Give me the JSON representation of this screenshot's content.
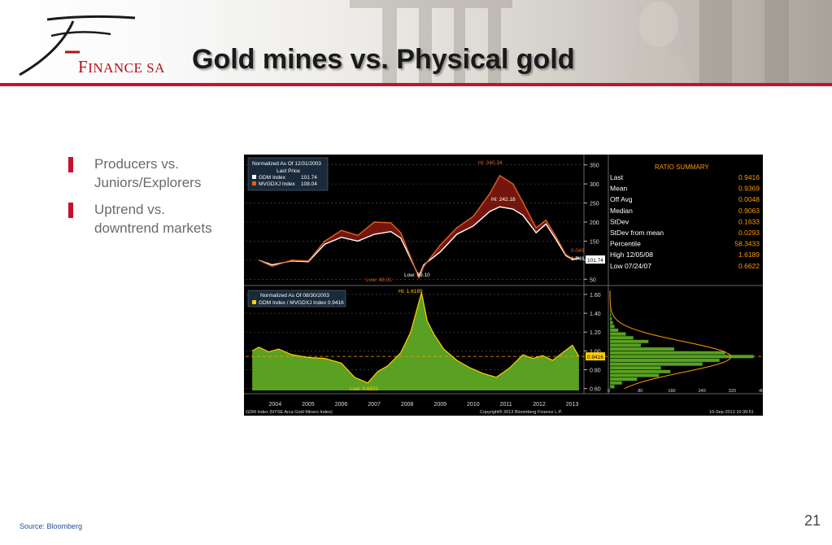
{
  "slide": {
    "title": "Gold mines vs. Physical gold",
    "logo_text_first": "F",
    "logo_text_rest": "INANCE SA",
    "bullets": [
      "Producers vs. Juniors/Explorers",
      "Uptrend vs. downtrend markets"
    ],
    "source": "Source:  Bloomberg",
    "page_number": "21"
  },
  "colors": {
    "accent": "#c8102e",
    "gold_series": "#ffffff",
    "miners_series": "#e06020",
    "ratio_fill": "#5aa022",
    "ratio_line": "#ffd000",
    "summary_label": "#ffffff",
    "summary_value": "#ff9a00"
  },
  "chart_data": [
    {
      "type": "line",
      "legend_title": "Normalized As Of 12/31/2003",
      "legend_subtitle": "Last Price",
      "series": [
        {
          "name": "GDM Index",
          "last": "101.74",
          "color": "#ffffff",
          "points": [
            [
              2004,
              100
            ],
            [
              2004.4,
              88
            ],
            [
              2005,
              98
            ],
            [
              2005.5,
              96
            ],
            [
              2006,
              142
            ],
            [
              2006.5,
              160
            ],
            [
              2007,
              150
            ],
            [
              2007.5,
              168
            ],
            [
              2008,
              175
            ],
            [
              2008.3,
              158
            ],
            [
              2008.85,
              58
            ],
            [
              2009,
              88
            ],
            [
              2009.5,
              122
            ],
            [
              2010,
              168
            ],
            [
              2010.5,
              190
            ],
            [
              2011,
              228
            ],
            [
              2011.3,
              240
            ],
            [
              2011.7,
              234
            ],
            [
              2012,
              218
            ],
            [
              2012.4,
              172
            ],
            [
              2012.7,
              195
            ],
            [
              2013,
              155
            ],
            [
              2013.3,
              112
            ],
            [
              2013.5,
              102
            ],
            [
              2013.7,
              105
            ]
          ]
        },
        {
          "name": "MVGDXJ Index",
          "last": "108.04",
          "color": "#e06020",
          "points": [
            [
              2004,
              100
            ],
            [
              2004.4,
              84
            ],
            [
              2005,
              100
            ],
            [
              2005.5,
              98
            ],
            [
              2006,
              150
            ],
            [
              2006.5,
              178
            ],
            [
              2007,
              165
            ],
            [
              2007.5,
              200
            ],
            [
              2008,
              198
            ],
            [
              2008.3,
              172
            ],
            [
              2008.85,
              54
            ],
            [
              2009,
              84
            ],
            [
              2009.5,
              140
            ],
            [
              2010,
              185
            ],
            [
              2010.5,
              215
            ],
            [
              2011,
              275
            ],
            [
              2011.3,
              322
            ],
            [
              2011.7,
              300
            ],
            [
              2012,
              252
            ],
            [
              2012.4,
              185
            ],
            [
              2012.7,
              205
            ],
            [
              2013,
              162
            ],
            [
              2013.3,
              115
            ],
            [
              2013.5,
              104
            ],
            [
              2013.7,
              108
            ]
          ]
        }
      ],
      "annotations": [
        "Hi: 340.34",
        "Hi: 242.18",
        "Low: 59.10",
        "Low: 48.01",
        "1.749",
        "0.049"
      ],
      "y_ticks": [
        "350",
        "300",
        "250",
        "200",
        "150",
        "100",
        "50"
      ],
      "ylim": [
        40,
        360
      ],
      "last_label": "101.74"
    },
    {
      "type": "area",
      "legend_title": "Normalized As Of 08/30/2003",
      "series": [
        {
          "name": "GDM Index / MVGDXJ Index 0.9416",
          "color": "#ffd000",
          "points": [
            [
              2003.8,
              1.0
            ],
            [
              2004,
              1.04
            ],
            [
              2004.3,
              0.99
            ],
            [
              2004.6,
              1.02
            ],
            [
              2005,
              0.96
            ],
            [
              2005.5,
              0.93
            ],
            [
              2006,
              0.92
            ],
            [
              2006.5,
              0.87
            ],
            [
              2006.9,
              0.72
            ],
            [
              2007.1,
              0.69
            ],
            [
              2007.3,
              0.66
            ],
            [
              2007.6,
              0.78
            ],
            [
              2007.9,
              0.84
            ],
            [
              2008.3,
              0.98
            ],
            [
              2008.6,
              1.2
            ],
            [
              2008.93,
              1.62
            ],
            [
              2009.1,
              1.32
            ],
            [
              2009.3,
              1.18
            ],
            [
              2009.6,
              1.02
            ],
            [
              2010,
              0.9
            ],
            [
              2010.4,
              0.82
            ],
            [
              2010.8,
              0.76
            ],
            [
              2011.2,
              0.72
            ],
            [
              2011.6,
              0.82
            ],
            [
              2012,
              0.96
            ],
            [
              2012.3,
              0.92
            ],
            [
              2012.6,
              0.95
            ],
            [
              2012.9,
              0.9
            ],
            [
              2013.2,
              0.98
            ],
            [
              2013.5,
              1.06
            ],
            [
              2013.7,
              0.94
            ]
          ]
        }
      ],
      "annotations": [
        "Hi: 1.6189",
        "Low: 0.6622"
      ],
      "y_ticks": [
        "1.60",
        "1.40",
        "1.20",
        "1.00",
        "0.80",
        "0.60"
      ],
      "ylim": [
        0.58,
        1.66
      ],
      "last_label": "0.9416",
      "x_ticks": [
        "2004",
        "2005",
        "2006",
        "2007",
        "2008",
        "2009",
        "2010",
        "2011",
        "2012",
        "2013"
      ],
      "xlim": [
        2003.6,
        2013.85
      ],
      "footer_left": "GDM Index (NYSE Arca Gold Miners Index)",
      "footer_center": "Copyright® 2013 Bloomberg Finance L.P.",
      "footer_right": "10-Sep-2013 10:39:51"
    },
    {
      "type": "bar",
      "orientation": "horizontal",
      "bins": [
        0.62,
        0.66,
        0.7,
        0.74,
        0.78,
        0.82,
        0.86,
        0.9,
        0.94,
        0.98,
        1.02,
        1.06,
        1.1,
        1.14,
        1.18,
        1.22,
        1.26,
        1.3,
        1.34,
        1.38,
        1.42,
        1.46,
        1.5,
        1.54,
        1.58
      ],
      "values": [
        12,
        32,
        72,
        130,
        160,
        135,
        245,
        290,
        380,
        305,
        170,
        82,
        102,
        62,
        42,
        22,
        12,
        8,
        5,
        3,
        2,
        1,
        1,
        1,
        1
      ],
      "x_ticks": [
        "0",
        "80",
        "160",
        "240",
        "320",
        "400"
      ],
      "xlim": [
        0,
        400
      ]
    },
    {
      "type": "table",
      "title": "RATIO SUMMARY",
      "rows": [
        {
          "label": "Last",
          "value": "0.9416"
        },
        {
          "label": "Mean",
          "value": "0.9369"
        },
        {
          "label": "Off Avg",
          "value": "0.0048"
        },
        {
          "label": "Median",
          "value": "0.9063"
        },
        {
          "label": "StDev",
          "value": "0.1633"
        },
        {
          "label": "StDev from mean",
          "value": "0.0293"
        },
        {
          "label": "Percentile",
          "value": "58.3433"
        },
        {
          "label": "High 12/05/08",
          "value": "1.6189"
        },
        {
          "label": "Low 07/24/07",
          "value": "0.6622"
        }
      ]
    }
  ]
}
